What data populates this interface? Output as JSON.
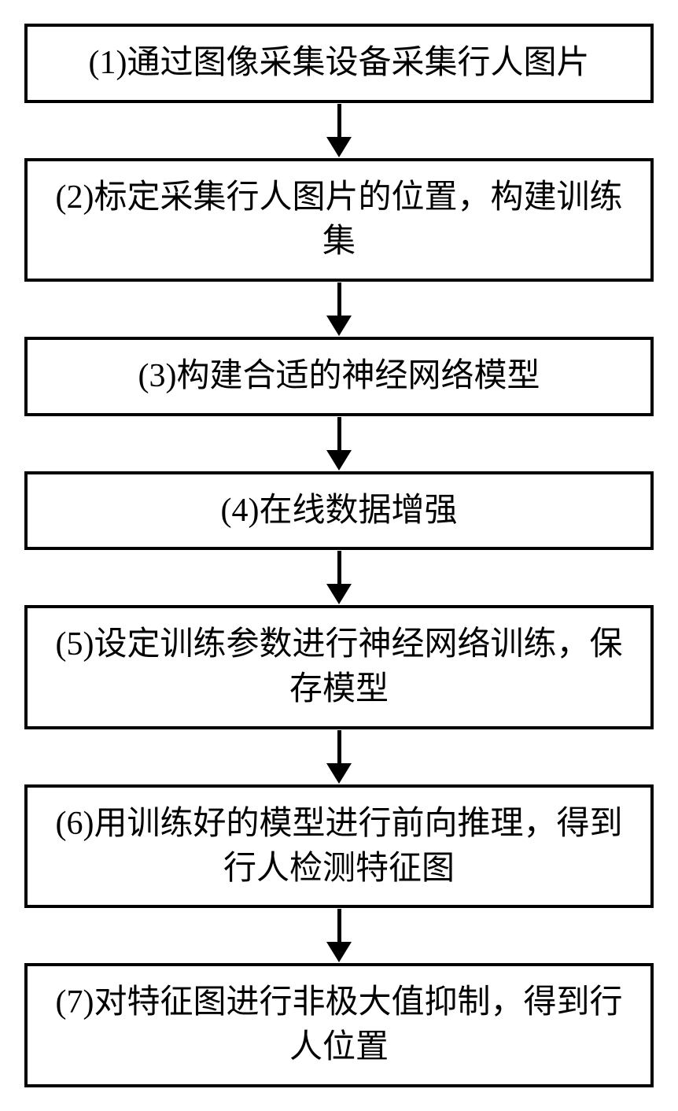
{
  "flowchart": {
    "type": "flowchart",
    "direction": "vertical",
    "background_color": "#ffffff",
    "box_border_color": "#000000",
    "box_border_width": 4,
    "box_background": "#ffffff",
    "text_color": "#000000",
    "font_size": 42,
    "font_family": "SimSun",
    "arrow_color": "#000000",
    "arrow_line_width": 5,
    "arrow_head_width": 32,
    "arrow_head_height": 26,
    "steps": [
      {
        "id": 1,
        "text": "(1)通过图像采集设备采集行人图片"
      },
      {
        "id": 2,
        "text": "(2)标定采集行人图片的位置，构建训练集"
      },
      {
        "id": 3,
        "text": "(3)构建合适的神经网络模型"
      },
      {
        "id": 4,
        "text": "(4)在线数据增强"
      },
      {
        "id": 5,
        "text": "(5)设定训练参数进行神经网络训练，保存模型"
      },
      {
        "id": 6,
        "text": "(6)用训练好的模型进行前向推理，得到行人检测特征图"
      },
      {
        "id": 7,
        "text": "(7)对特征图进行非极大值抑制，得到行人位置"
      }
    ]
  }
}
